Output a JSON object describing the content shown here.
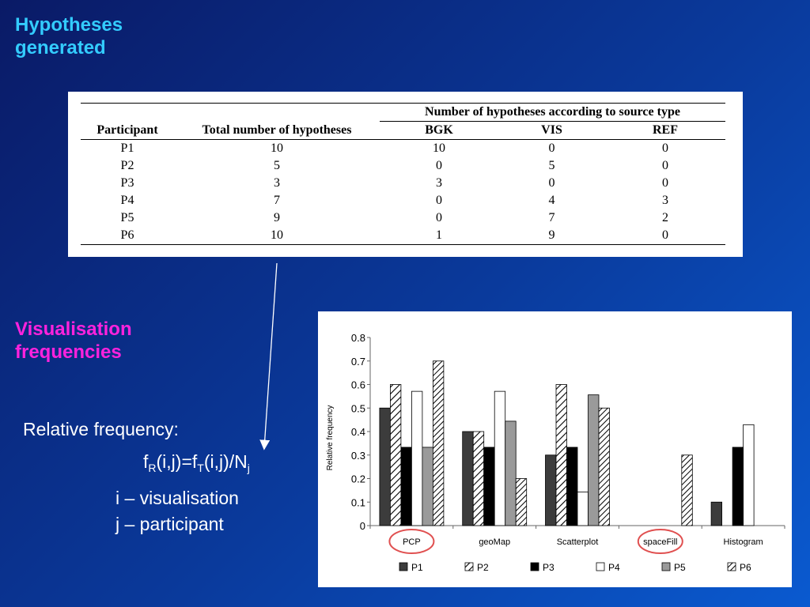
{
  "titles": {
    "hypotheses": [
      "Hypotheses",
      "generated"
    ],
    "visualisation": [
      "Visualisation",
      "frequencies"
    ]
  },
  "colors": {
    "hypotheses_title": "#33ccff",
    "visualisation_title": "#ff22dd",
    "highlight_circle": "#e05050"
  },
  "table": {
    "group_header": "Number of hypotheses according to source type",
    "columns": [
      "Participant",
      "Total number of hypotheses",
      "BGK",
      "VIS",
      "REF"
    ],
    "rows": [
      [
        "P1",
        "10",
        "10",
        "0",
        "0"
      ],
      [
        "P2",
        "5",
        "0",
        "5",
        "0"
      ],
      [
        "P3",
        "3",
        "3",
        "0",
        "0"
      ],
      [
        "P4",
        "7",
        "0",
        "4",
        "3"
      ],
      [
        "P5",
        "9",
        "0",
        "7",
        "2"
      ],
      [
        "P6",
        "10",
        "1",
        "9",
        "0"
      ]
    ]
  },
  "formula": {
    "label": "Relative frequency:",
    "f": "f",
    "sub_r": "R",
    "mid1": "(i,j)=f",
    "sub_t": "T",
    "mid2": "(i,j)/N",
    "sub_j": "j",
    "legend_i": "i – visualisation",
    "legend_j": "j – participant"
  },
  "chart_data": {
    "type": "bar",
    "categories": [
      "PCP",
      "geoMap",
      "Scatterplot",
      "spaceFill",
      "Histogram"
    ],
    "ylabel": "Relative frequency",
    "ylim": [
      0,
      0.8
    ],
    "yticks": [
      "0",
      "0.1",
      "0.2",
      "0.3",
      "0.4",
      "0.5",
      "0.6",
      "0.7",
      "0.8"
    ],
    "legend_position": "bottom",
    "highlighted_categories": [
      "PCP",
      "spaceFill"
    ],
    "series": [
      {
        "name": "P1",
        "values": [
          0.5,
          0.4,
          0.3,
          0,
          0.1
        ],
        "style": "dark-gray"
      },
      {
        "name": "P2",
        "values": [
          0.6,
          0.4,
          0.6,
          0,
          0
        ],
        "style": "hatched"
      },
      {
        "name": "P3",
        "values": [
          0.333,
          0.333,
          0.333,
          0,
          0.333
        ],
        "style": "black"
      },
      {
        "name": "P4",
        "values": [
          0.571,
          0.571,
          0.143,
          0,
          0.429
        ],
        "style": "white"
      },
      {
        "name": "P5",
        "values": [
          0.333,
          0.444,
          0.556,
          0,
          0
        ],
        "style": "light-gray"
      },
      {
        "name": "P6",
        "values": [
          0.7,
          0.2,
          0.5,
          0.3,
          0
        ],
        "style": "hatched-dense"
      }
    ]
  }
}
